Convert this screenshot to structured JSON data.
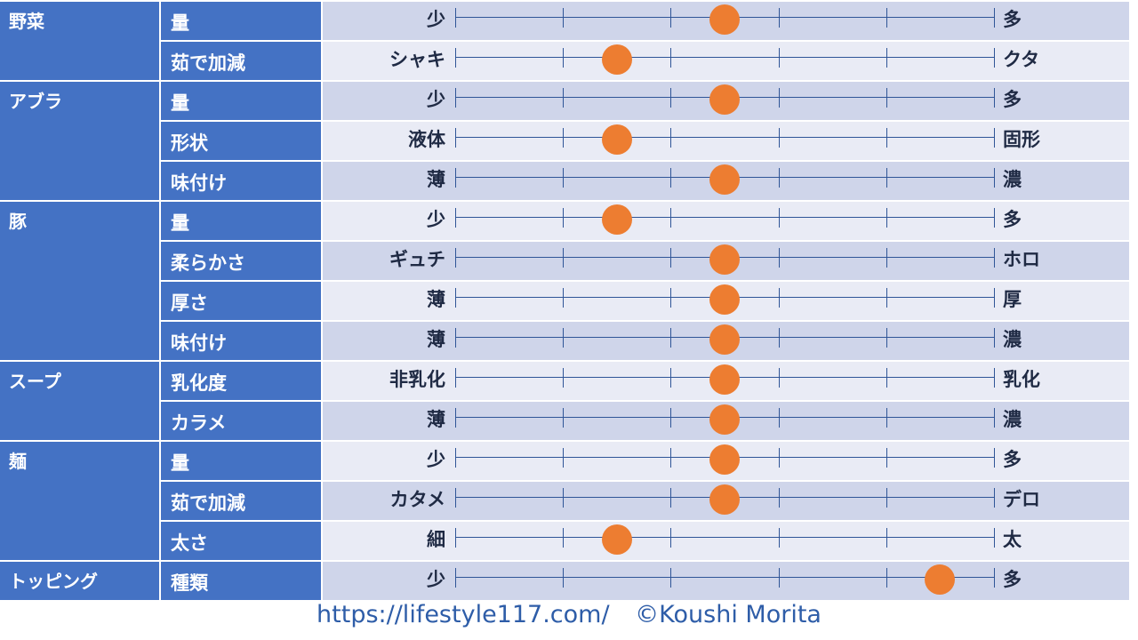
{
  "rows": [
    {
      "category": "野菜",
      "attribute": "量",
      "low": "少",
      "high": "多",
      "level": 0.5
    },
    {
      "category": "",
      "attribute": "茹で加減",
      "low": "シャキ",
      "high": "クタ",
      "level": 0.3
    },
    {
      "category": "アブラ",
      "attribute": "量",
      "low": "少",
      "high": "多",
      "level": 0.5
    },
    {
      "category": "",
      "attribute": "形状",
      "low": "液体",
      "high": "固形",
      "level": 0.3
    },
    {
      "category": "",
      "attribute": "味付け",
      "low": "薄",
      "high": "濃",
      "level": 0.5
    },
    {
      "category": "豚",
      "attribute": "量",
      "low": "少",
      "high": "多",
      "level": 0.3
    },
    {
      "category": "",
      "attribute": "柔らかさ",
      "low": "ギュチ",
      "high": "ホロ",
      "level": 0.5
    },
    {
      "category": "",
      "attribute": "厚さ",
      "low": "薄",
      "high": "厚",
      "level": 0.5
    },
    {
      "category": "",
      "attribute": "味付け",
      "low": "薄",
      "high": "濃",
      "level": 0.5
    },
    {
      "category": "スープ",
      "attribute": "乳化度",
      "low": "非乳化",
      "high": "乳化",
      "level": 0.5
    },
    {
      "category": "",
      "attribute": "カラメ",
      "low": "薄",
      "high": "濃",
      "level": 0.5
    },
    {
      "category": "麺",
      "attribute": "量",
      "low": "少",
      "high": "多",
      "level": 0.5
    },
    {
      "category": "",
      "attribute": "茹で加減",
      "low": "カタメ",
      "high": "デロ",
      "level": 0.5
    },
    {
      "category": "",
      "attribute": "太さ",
      "low": "細",
      "high": "太",
      "level": 0.3
    },
    {
      "category": "トッピング",
      "attribute": "種類",
      "low": "少",
      "high": "多",
      "level": 0.9
    }
  ],
  "footer": {
    "url": "https://lifestyle117.com/",
    "copyright": "©Koushi Morita"
  },
  "colors": {
    "header_bg": "#4472c4",
    "row_dark": "#cfd5ea",
    "row_light": "#e9ebf5",
    "dot": "#ed7d31",
    "line": "#2f5597"
  }
}
